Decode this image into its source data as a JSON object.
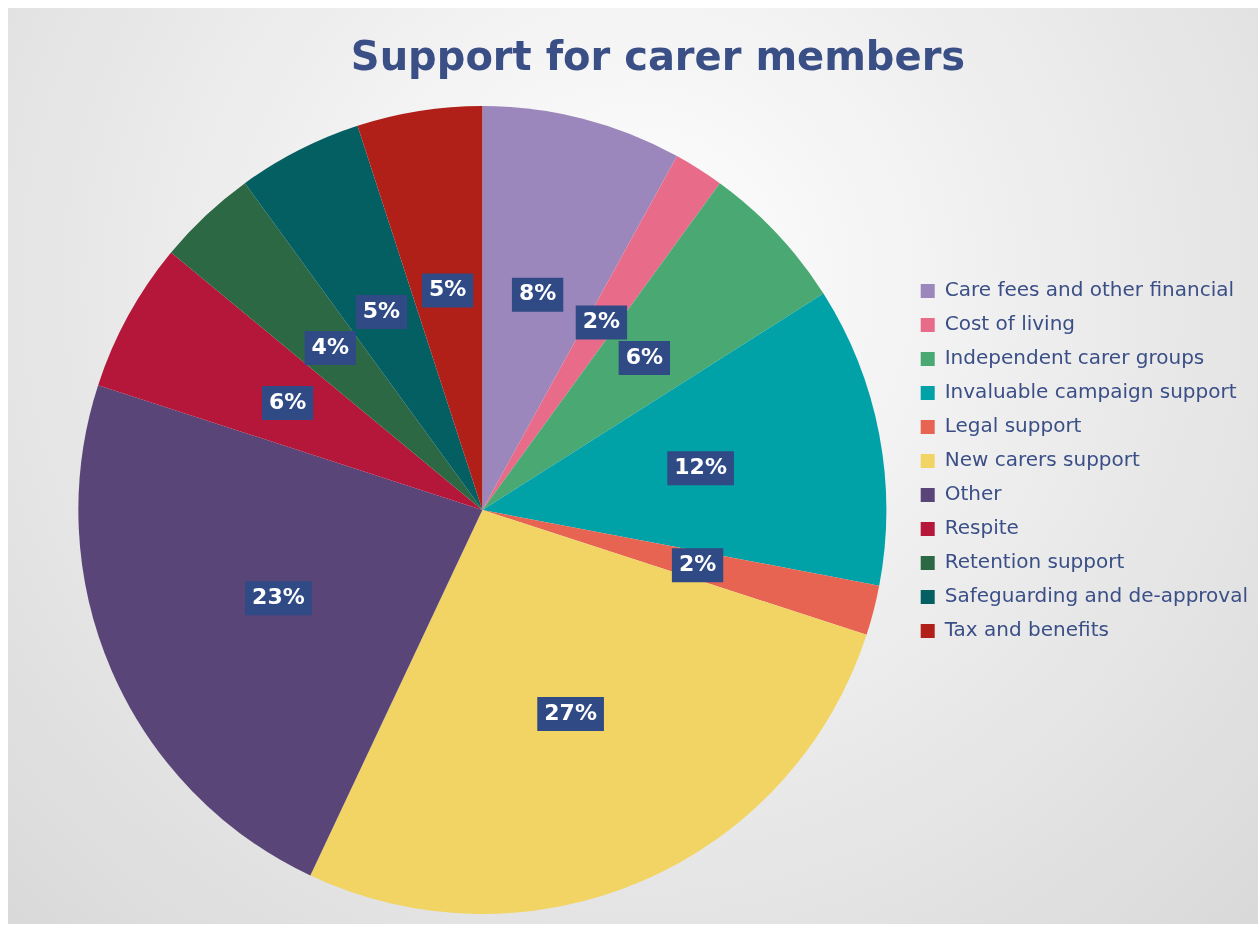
{
  "chart_data": {
    "type": "pie",
    "title": "Support for carer members",
    "categories": [
      "Care fees and other financial",
      "Cost of living",
      "Independent carer groups",
      "Invaluable campaign support",
      "Legal support",
      "New carers support",
      "Other",
      "Respite",
      "Retention support",
      "Safeguarding and de-approval",
      "Tax and benefits"
    ],
    "values": [
      8,
      2,
      6,
      12,
      2,
      27,
      23,
      6,
      4,
      5,
      5
    ],
    "value_labels": [
      "8%",
      "2%",
      "6%",
      "12%",
      "2%",
      "27%",
      "23%",
      "6%",
      "4%",
      "5%",
      "5%"
    ],
    "colors": [
      "#9b87bb",
      "#e96b8a",
      "#4aa872",
      "#00a1a7",
      "#e86452",
      "#f2d464",
      "#594578",
      "#b5173b",
      "#2d6845",
      "#045f63",
      "#b02018"
    ],
    "legend": "right"
  }
}
